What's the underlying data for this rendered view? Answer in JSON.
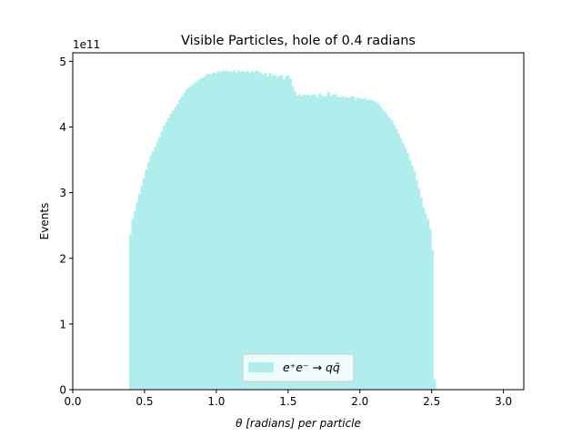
{
  "chart_data": {
    "type": "bar",
    "title": "Visible Particles, hole of 0.4 radians",
    "xlabel": "θ [radians] per particle",
    "ylabel": "Events",
    "y_offset_label": "1e11",
    "xlim": [
      0.0,
      3.14159
    ],
    "ylim": [
      0,
      5.13
    ],
    "xticks": [
      0.0,
      0.5,
      1.0,
      1.5,
      2.0,
      2.5,
      3.0
    ],
    "xtick_labels": [
      "0.0",
      "0.5",
      "1.0",
      "1.5",
      "2.0",
      "2.5",
      "3.0"
    ],
    "yticks": [
      0,
      1,
      2,
      3,
      4,
      5
    ],
    "ytick_labels": [
      "0",
      "1",
      "2",
      "3",
      "4",
      "5"
    ],
    "grid": false,
    "legend_position": "bottom-center",
    "series": [
      {
        "name": "e⁺e⁻ → qq̄",
        "color": "#b0eded",
        "bin_width": 0.0157,
        "bin_start": 0.3927,
        "values": [
          2.35,
          2.6,
          2.72,
          2.85,
          2.98,
          3.1,
          3.22,
          3.35,
          3.46,
          3.56,
          3.63,
          3.7,
          3.78,
          3.85,
          3.93,
          4.02,
          4.08,
          4.14,
          4.2,
          4.25,
          4.3,
          4.35,
          4.42,
          4.47,
          4.52,
          4.57,
          4.6,
          4.63,
          4.66,
          4.68,
          4.71,
          4.73,
          4.75,
          4.77,
          4.8,
          4.81,
          4.8,
          4.83,
          4.82,
          4.85,
          4.84,
          4.86,
          4.85,
          4.86,
          4.84,
          4.85,
          4.86,
          4.83,
          4.86,
          4.84,
          4.85,
          4.84,
          4.86,
          4.82,
          4.85,
          4.83,
          4.86,
          4.84,
          4.82,
          4.8,
          4.83,
          4.78,
          4.82,
          4.78,
          4.8,
          4.76,
          4.78,
          4.79,
          4.73,
          4.77,
          4.79,
          4.74,
          4.62,
          4.54,
          4.48,
          4.5,
          4.48,
          4.49,
          4.48,
          4.49,
          4.48,
          4.5,
          4.49,
          4.45,
          4.51,
          4.48,
          4.46,
          4.48,
          4.53,
          4.47,
          4.49,
          4.5,
          4.46,
          4.45,
          4.47,
          4.45,
          4.46,
          4.44,
          4.47,
          4.46,
          4.42,
          4.45,
          4.43,
          4.43,
          4.44,
          4.41,
          4.42,
          4.41,
          4.4,
          4.38,
          4.36,
          4.31,
          4.26,
          4.23,
          4.18,
          4.14,
          4.1,
          4.04,
          3.97,
          3.9,
          3.83,
          3.75,
          3.68,
          3.6,
          3.5,
          3.41,
          3.32,
          3.19,
          3.06,
          2.92,
          2.78,
          2.68,
          2.6,
          2.45,
          2.12,
          0.16
        ]
      }
    ]
  }
}
